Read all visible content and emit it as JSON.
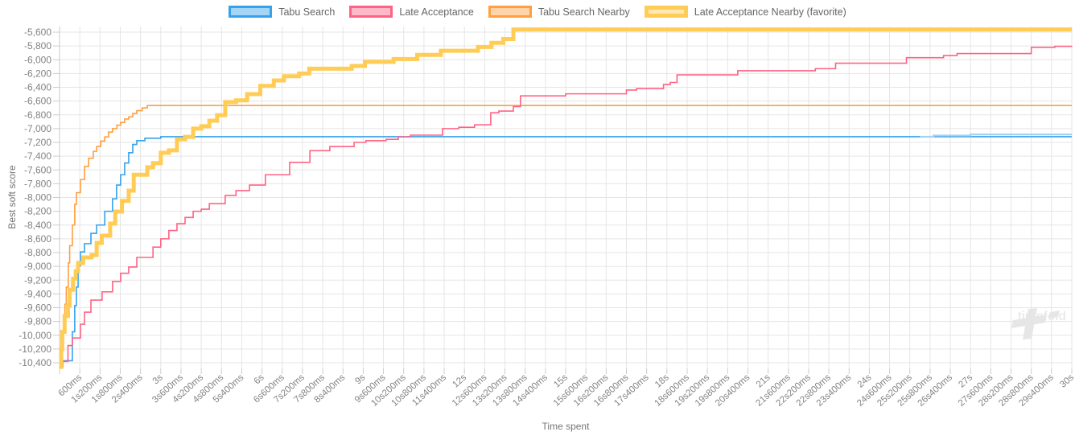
{
  "chart_data": {
    "type": "line",
    "step": "after",
    "title": "",
    "xlabel": "Time spent",
    "ylabel": "Best soft score",
    "watermark": "timefold",
    "xlim_seconds": [
      0,
      30
    ],
    "ylim": [
      -10400,
      -5600
    ],
    "grid": true,
    "legend_position": "top",
    "x_tick_interval_seconds": 0.6,
    "x_tick_labels": [
      "600ms",
      "1s200ms",
      "1s800ms",
      "2s400ms",
      "3s",
      "3s600ms",
      "4s200ms",
      "4s800ms",
      "5s400ms",
      "6s",
      "6s600ms",
      "7s200ms",
      "7s800ms",
      "8s400ms",
      "9s",
      "9s600ms",
      "10s200ms",
      "10s800ms",
      "11s400ms",
      "12s",
      "12s600ms",
      "13s200ms",
      "13s800ms",
      "14s400ms",
      "15s",
      "15s600ms",
      "16s200ms",
      "16s800ms",
      "17s400ms",
      "18s",
      "18s600ms",
      "19s200ms",
      "19s800ms",
      "20s400ms",
      "21s",
      "21s600ms",
      "22s200ms",
      "22s800ms",
      "23s400ms",
      "24s",
      "24s600ms",
      "25s200ms",
      "25s800ms",
      "26s400ms",
      "27s",
      "27s600ms",
      "28s200ms",
      "28s800ms",
      "29s400ms",
      "30s"
    ],
    "y_tick_values": [
      -5600,
      -5800,
      -6000,
      -6200,
      -6400,
      -6600,
      -6800,
      -7000,
      -7200,
      -7400,
      -7600,
      -7800,
      -8000,
      -8200,
      -8400,
      -8600,
      -8800,
      -9000,
      -9200,
      -9400,
      -9600,
      -9800,
      -10000,
      -10200,
      -10400
    ],
    "y_tick_labels": [
      "-5,600",
      "-5,800",
      "-6,000",
      "-6,200",
      "-6,400",
      "-6,600",
      "-6,800",
      "-7,000",
      "-7,200",
      "-7,400",
      "-7,600",
      "-7,800",
      "-8,000",
      "-8,200",
      "-8,400",
      "-8,600",
      "-8,800",
      "-9,000",
      "-9,200",
      "-9,400",
      "-9,600",
      "-9,800",
      "-10,000",
      "-10,200",
      "-10,400"
    ],
    "style": {
      "grid_color": "#e5e5e5",
      "axis_color": "#c9c9c9",
      "tick_color": "#cccccc",
      "tick_label_color": "#828282",
      "axis_title_color": "#757575",
      "legend_text_color": "#666666",
      "watermark_color": "#e6e6e6",
      "background": "#ffffff"
    },
    "series": [
      {
        "name": "Tabu Search",
        "color": "#36a2eb",
        "fill": "rgba(54,162,235,0.45)",
        "width": 1.6,
        "favorite": false,
        "points": [
          [
            0.05,
            -10420
          ],
          [
            0.1,
            -10370
          ],
          [
            0.33,
            -10370
          ],
          [
            0.38,
            -9950
          ],
          [
            0.45,
            -9570
          ],
          [
            0.5,
            -9300
          ],
          [
            0.55,
            -8990
          ],
          [
            0.62,
            -8790
          ],
          [
            0.74,
            -8670
          ],
          [
            0.93,
            -8520
          ],
          [
            1.1,
            -8400
          ],
          [
            1.34,
            -8200
          ],
          [
            1.57,
            -8020
          ],
          [
            1.69,
            -7820
          ],
          [
            1.81,
            -7670
          ],
          [
            1.93,
            -7500
          ],
          [
            2.05,
            -7350
          ],
          [
            2.17,
            -7230
          ],
          [
            2.29,
            -7175
          ],
          [
            2.53,
            -7140
          ],
          [
            3.0,
            -7118
          ],
          [
            30.0,
            -7118
          ]
        ],
        "tail_points": [
          [
            25.5,
            -7118
          ],
          [
            25.9,
            -7100
          ],
          [
            27.0,
            -7085
          ],
          [
            30.0,
            -7085
          ]
        ],
        "tail_color": "#a6d2f0",
        "tail_width": 2.2
      },
      {
        "name": "Late Acceptance",
        "color": "#ff6384",
        "fill": "rgba(255,99,132,0.45)",
        "width": 1.6,
        "favorite": false,
        "points": [
          [
            0.03,
            -10460
          ],
          [
            0.1,
            -10380
          ],
          [
            0.25,
            -10150
          ],
          [
            0.38,
            -10040
          ],
          [
            0.62,
            -9840
          ],
          [
            0.74,
            -9665
          ],
          [
            0.93,
            -9490
          ],
          [
            1.26,
            -9370
          ],
          [
            1.57,
            -9220
          ],
          [
            1.81,
            -9100
          ],
          [
            2.05,
            -9010
          ],
          [
            2.29,
            -8870
          ],
          [
            2.77,
            -8720
          ],
          [
            3.0,
            -8600
          ],
          [
            3.24,
            -8480
          ],
          [
            3.48,
            -8380
          ],
          [
            3.72,
            -8290
          ],
          [
            3.96,
            -8200
          ],
          [
            4.2,
            -8170
          ],
          [
            4.44,
            -8090
          ],
          [
            4.91,
            -7970
          ],
          [
            5.23,
            -7900
          ],
          [
            5.63,
            -7820
          ],
          [
            6.1,
            -7670
          ],
          [
            6.82,
            -7490
          ],
          [
            7.42,
            -7320
          ],
          [
            8.01,
            -7260
          ],
          [
            8.73,
            -7200
          ],
          [
            9.08,
            -7175
          ],
          [
            9.68,
            -7155
          ],
          [
            10.04,
            -7120
          ],
          [
            10.4,
            -7095
          ],
          [
            11.35,
            -7000
          ],
          [
            11.83,
            -6980
          ],
          [
            12.3,
            -6945
          ],
          [
            12.78,
            -6770
          ],
          [
            13.02,
            -6745
          ],
          [
            13.45,
            -6680
          ],
          [
            13.66,
            -6525
          ],
          [
            15.0,
            -6495
          ],
          [
            16.8,
            -6440
          ],
          [
            17.1,
            -6420
          ],
          [
            17.9,
            -6360
          ],
          [
            18.1,
            -6330
          ],
          [
            18.3,
            -6220
          ],
          [
            20.1,
            -6160
          ],
          [
            22.4,
            -6130
          ],
          [
            23.0,
            -6050
          ],
          [
            25.1,
            -5970
          ],
          [
            26.2,
            -5940
          ],
          [
            26.6,
            -5910
          ],
          [
            28.8,
            -5820
          ],
          [
            29.5,
            -5805
          ],
          [
            30.0,
            -5800
          ]
        ]
      },
      {
        "name": "Tabu Search Nearby",
        "color": "#ff9f40",
        "fill": "rgba(255,159,64,0.45)",
        "width": 1.6,
        "favorite": false,
        "points": [
          [
            0.01,
            -10460
          ],
          [
            0.05,
            -10250
          ],
          [
            0.08,
            -10050
          ],
          [
            0.12,
            -9800
          ],
          [
            0.16,
            -9550
          ],
          [
            0.2,
            -9300
          ],
          [
            0.26,
            -8950
          ],
          [
            0.3,
            -8700
          ],
          [
            0.38,
            -8400
          ],
          [
            0.45,
            -8100
          ],
          [
            0.5,
            -7930
          ],
          [
            0.62,
            -7740
          ],
          [
            0.74,
            -7550
          ],
          [
            0.86,
            -7430
          ],
          [
            1.0,
            -7330
          ],
          [
            1.1,
            -7260
          ],
          [
            1.22,
            -7180
          ],
          [
            1.34,
            -7120
          ],
          [
            1.45,
            -7050
          ],
          [
            1.57,
            -7000
          ],
          [
            1.7,
            -6950
          ],
          [
            1.81,
            -6910
          ],
          [
            1.93,
            -6860
          ],
          [
            2.05,
            -6830
          ],
          [
            2.17,
            -6780
          ],
          [
            2.29,
            -6740
          ],
          [
            2.45,
            -6700
          ],
          [
            2.6,
            -6665
          ],
          [
            30.0,
            -6665
          ]
        ]
      },
      {
        "name": "Late Acceptance Nearby (favorite)",
        "color": "#ffcd56",
        "fill": "rgba(255,205,86,0.45)",
        "width": 5,
        "favorite": true,
        "points": [
          [
            0.01,
            -10460
          ],
          [
            0.05,
            -10200
          ],
          [
            0.08,
            -9950
          ],
          [
            0.15,
            -9720
          ],
          [
            0.25,
            -9570
          ],
          [
            0.3,
            -9340
          ],
          [
            0.4,
            -9180
          ],
          [
            0.48,
            -9070
          ],
          [
            0.55,
            -8950
          ],
          [
            0.7,
            -8870
          ],
          [
            0.95,
            -8835
          ],
          [
            1.1,
            -8660
          ],
          [
            1.25,
            -8555
          ],
          [
            1.5,
            -8380
          ],
          [
            1.65,
            -8205
          ],
          [
            1.85,
            -8050
          ],
          [
            2.05,
            -7900
          ],
          [
            2.2,
            -7670
          ],
          [
            2.6,
            -7560
          ],
          [
            2.77,
            -7500
          ],
          [
            3.0,
            -7350
          ],
          [
            3.24,
            -7315
          ],
          [
            3.48,
            -7155
          ],
          [
            3.72,
            -7120
          ],
          [
            3.96,
            -7000
          ],
          [
            4.2,
            -6965
          ],
          [
            4.44,
            -6885
          ],
          [
            4.67,
            -6805
          ],
          [
            4.91,
            -6615
          ],
          [
            5.23,
            -6590
          ],
          [
            5.56,
            -6500
          ],
          [
            5.95,
            -6380
          ],
          [
            6.35,
            -6300
          ],
          [
            6.65,
            -6240
          ],
          [
            7.1,
            -6200
          ],
          [
            7.4,
            -6130
          ],
          [
            8.66,
            -6090
          ],
          [
            9.05,
            -6030
          ],
          [
            9.9,
            -5990
          ],
          [
            10.6,
            -5930
          ],
          [
            11.3,
            -5870
          ],
          [
            12.4,
            -5815
          ],
          [
            12.8,
            -5755
          ],
          [
            13.15,
            -5700
          ],
          [
            13.45,
            -5560
          ],
          [
            30.0,
            -5560
          ]
        ]
      }
    ]
  }
}
